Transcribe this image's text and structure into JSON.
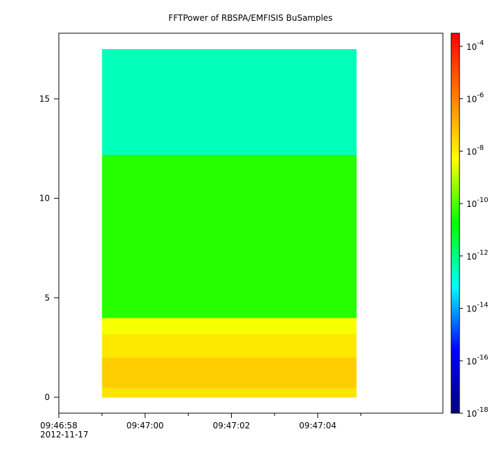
{
  "chart_data": {
    "type": "heatmap",
    "title": "FFTPower of RBSPA/EMFISIS  BuSamples",
    "xlabel": "",
    "ylabel": "",
    "x_ticks": [
      {
        "value": "09:46:58",
        "sub": "2012-11-17"
      },
      {
        "value": "09:47:00"
      },
      {
        "value": "09:47:02"
      },
      {
        "value": "09:47:04"
      }
    ],
    "x_minor_ticks": [
      "09:46:59",
      "09:47:01",
      "09:47:03",
      "09:47:05"
    ],
    "x_range_seconds": [
      -1.0,
      7.9
    ],
    "data_time_range_seconds": [
      0.0,
      5.9
    ],
    "y_ticks": [
      "0",
      "5",
      "10",
      "15"
    ],
    "y_range": [
      -0.8,
      18.3
    ],
    "data_y_range": [
      0.0,
      17.5
    ],
    "colorbar": {
      "scale": "log",
      "range_exponent": [
        -18,
        -3.5
      ],
      "tick_base": "10",
      "tick_exponents": [
        "-4",
        "-6",
        "-8",
        "-10",
        "-12",
        "-14",
        "-16",
        "-18"
      ],
      "colors": [
        "#00007f",
        "#0000ff",
        "#00ffff",
        "#00ff00",
        "#ffff00",
        "#ff7f00",
        "#ff0000"
      ]
    },
    "bands": [
      {
        "y_from": 0.0,
        "y_to": 0.5,
        "log_power": -7.8
      },
      {
        "y_from": 0.5,
        "y_to": 2.0,
        "log_power": -7.4
      },
      {
        "y_from": 2.0,
        "y_to": 3.2,
        "log_power": -7.9
      },
      {
        "y_from": 3.2,
        "y_to": 4.0,
        "log_power": -8.4
      },
      {
        "y_from": 4.0,
        "y_to": 12.2,
        "log_power": -10.4
      },
      {
        "y_from": 12.2,
        "y_to": 17.5,
        "log_power": -12.5
      }
    ]
  }
}
